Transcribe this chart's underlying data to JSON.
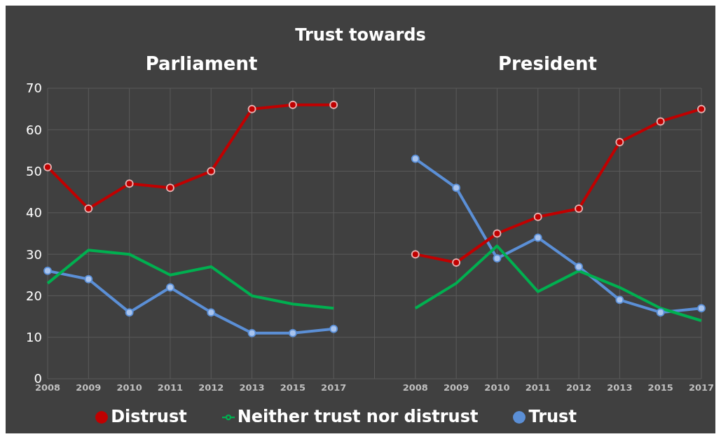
{
  "chart_data": {
    "type": "line",
    "title": "Trust towards",
    "annotations": [
      "Parliament",
      "President"
    ],
    "categories": [
      "2008",
      "2009",
      "2010",
      "2011",
      "2012",
      "2013",
      "2015",
      "2017",
      null,
      "2008",
      "2009",
      "2010",
      "2011",
      "2012",
      "2013",
      "2015",
      "2017"
    ],
    "series": [
      {
        "name": "Trust",
        "color": "#5b8fd6",
        "marker": "circle",
        "values": [
          26,
          24,
          16,
          22,
          16,
          11,
          11,
          12,
          null,
          53,
          46,
          29,
          34,
          27,
          19,
          16,
          17
        ]
      },
      {
        "name": "Neither trust nor distrust",
        "color": "#00b050",
        "marker": "none",
        "values": [
          23,
          31,
          30,
          25,
          27,
          20,
          18,
          17,
          null,
          17,
          23,
          32,
          21,
          26,
          22,
          17,
          14
        ]
      },
      {
        "name": "Distrust",
        "color": "#c00000",
        "marker": "circle",
        "values": [
          51,
          41,
          47,
          46,
          50,
          65,
          66,
          66,
          null,
          30,
          28,
          35,
          39,
          41,
          57,
          62,
          65
        ]
      }
    ],
    "ylim": [
      0,
      70
    ],
    "yticks": [
      0,
      10,
      20,
      30,
      40,
      50,
      60,
      70
    ],
    "grid": true,
    "legend": "bottom",
    "line_style": "solid"
  }
}
